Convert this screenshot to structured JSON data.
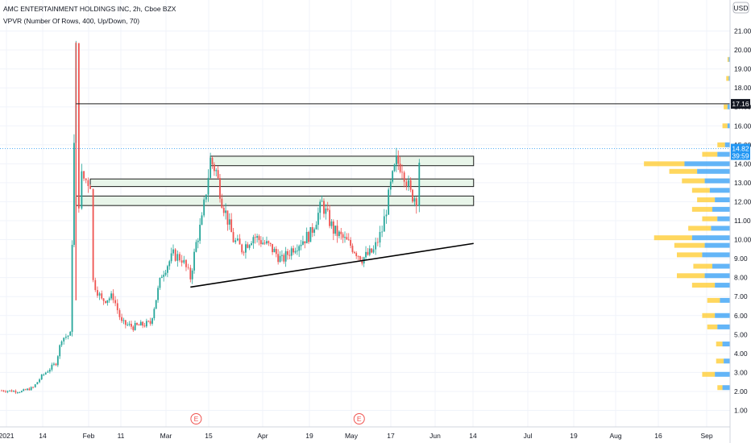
{
  "header": {
    "title": "AMC ENTERTAINMENT HOLDINGS INC, 2h, Cboe BZX",
    "indicator": "VPVR (Number Of Rows, 400, Up/Down, 70)",
    "currency": "USD"
  },
  "price_labels": {
    "resistance": "17.16",
    "last_price": "14.82",
    "countdown": "39:59"
  },
  "earnings_marker": "E",
  "colors": {
    "up": "#26a69a",
    "down": "#ef5350",
    "box_fill": "#e8f5e9",
    "volume_up": "#2196f3",
    "volume_down": "#ffca28",
    "last_price": "#2196f3"
  },
  "chart_data": {
    "type": "candlestick",
    "ylim": [
      0.4,
      22.0
    ],
    "y_ticks": [
      "1.00",
      "2.00",
      "3.00",
      "4.00",
      "5.00",
      "6.00",
      "7.00",
      "8.00",
      "9.00",
      "10.00",
      "11.00",
      "12.00",
      "13.00",
      "14.00",
      "15.00",
      "16.00",
      "17.00",
      "18.00",
      "19.00",
      "20.00",
      "21.00"
    ],
    "x_ticks": [
      "2021",
      "14",
      "Feb",
      "11",
      "Mar",
      "15",
      "Apr",
      "19",
      "May",
      "17",
      "Jun",
      "14",
      "Jul",
      "19",
      "Aug",
      "16",
      "Sep"
    ],
    "price_path": [
      [
        "2021-01-01",
        2.05
      ],
      [
        "2021-01-08",
        2.0
      ],
      [
        "2021-01-12",
        2.2
      ],
      [
        "2021-01-15",
        2.8
      ],
      [
        "2021-01-20",
        3.5
      ],
      [
        "2021-01-22",
        4.8
      ],
      [
        "2021-01-25",
        5.0
      ],
      [
        "2021-01-27",
        19.9
      ],
      [
        "2021-01-28",
        12.0
      ],
      [
        "2021-01-29",
        13.3
      ],
      [
        "2021-02-01",
        13.0
      ],
      [
        "2021-02-02",
        7.8
      ],
      [
        "2021-02-05",
        6.8
      ],
      [
        "2021-02-09",
        7.0
      ],
      [
        "2021-02-12",
        5.6
      ],
      [
        "2021-02-16",
        5.4
      ],
      [
        "2021-02-22",
        5.6
      ],
      [
        "2021-02-26",
        8.2
      ],
      [
        "2021-03-02",
        9.2
      ],
      [
        "2021-03-05",
        9.0
      ],
      [
        "2021-03-08",
        8.0
      ],
      [
        "2021-03-10",
        9.8
      ],
      [
        "2021-03-12",
        11.0
      ],
      [
        "2021-03-15",
        14.2
      ],
      [
        "2021-03-17",
        13.6
      ],
      [
        "2021-03-19",
        12.1
      ],
      [
        "2021-03-23",
        10.0
      ],
      [
        "2021-03-26",
        9.5
      ],
      [
        "2021-03-30",
        10.2
      ],
      [
        "2021-04-05",
        9.6
      ],
      [
        "2021-04-09",
        8.9
      ],
      [
        "2021-04-13",
        9.6
      ],
      [
        "2021-04-19",
        10.3
      ],
      [
        "2021-04-23",
        11.9
      ],
      [
        "2021-04-27",
        10.5
      ],
      [
        "2021-05-03",
        9.7
      ],
      [
        "2021-05-07",
        9.0
      ],
      [
        "2021-05-11",
        9.4
      ],
      [
        "2021-05-14",
        10.5
      ],
      [
        "2021-05-17",
        12.8
      ],
      [
        "2021-05-19",
        14.1
      ],
      [
        "2021-05-21",
        13.9
      ],
      [
        "2021-05-24",
        12.4
      ],
      [
        "2021-05-26",
        12.2
      ],
      [
        "2021-05-27",
        14.2
      ],
      [
        "2021-05-28",
        14.8
      ]
    ],
    "resistance_line": 17.16,
    "support_zones": [
      {
        "start": "2021-03-15",
        "end": "2021-06-15",
        "low": 13.9,
        "high": 14.4
      },
      {
        "start": "2021-02-01",
        "end": "2021-06-15",
        "low": 12.8,
        "high": 13.2
      },
      {
        "start": "2021-01-27",
        "end": "2021-06-15",
        "low": 11.8,
        "high": 12.3
      }
    ],
    "trendline": [
      [
        "2021-03-08",
        7.5
      ],
      [
        "2021-06-15",
        9.8
      ]
    ],
    "earnings_dates": [
      "2021-03-10",
      "2021-05-06"
    ],
    "volume_profile": [
      {
        "price": 2.2,
        "up": 0.06,
        "down": 0.04
      },
      {
        "price": 2.9,
        "up": 0.12,
        "down": 0.1
      },
      {
        "price": 3.6,
        "up": 0.05,
        "down": 0.06
      },
      {
        "price": 4.5,
        "up": 0.06,
        "down": 0.05
      },
      {
        "price": 5.4,
        "up": 0.1,
        "down": 0.08
      },
      {
        "price": 6.0,
        "up": 0.12,
        "down": 0.1
      },
      {
        "price": 6.8,
        "up": 0.08,
        "down": 0.1
      },
      {
        "price": 7.6,
        "up": 0.12,
        "down": 0.18
      },
      {
        "price": 8.1,
        "up": 0.2,
        "down": 0.22
      },
      {
        "price": 8.6,
        "up": 0.14,
        "down": 0.15
      },
      {
        "price": 9.2,
        "up": 0.22,
        "down": 0.2
      },
      {
        "price": 9.7,
        "up": 0.2,
        "down": 0.24
      },
      {
        "price": 10.1,
        "up": 0.3,
        "down": 0.3
      },
      {
        "price": 10.6,
        "up": 0.15,
        "down": 0.18
      },
      {
        "price": 11.1,
        "up": 0.1,
        "down": 0.12
      },
      {
        "price": 11.6,
        "up": 0.14,
        "down": 0.16
      },
      {
        "price": 12.1,
        "up": 0.12,
        "down": 0.14
      },
      {
        "price": 12.6,
        "up": 0.16,
        "down": 0.14
      },
      {
        "price": 13.1,
        "up": 0.2,
        "down": 0.18
      },
      {
        "price": 13.6,
        "up": 0.26,
        "down": 0.22
      },
      {
        "price": 14.0,
        "up": 0.36,
        "down": 0.32
      },
      {
        "price": 14.5,
        "up": 0.1,
        "down": 0.12
      },
      {
        "price": 15.0,
        "up": 0.04,
        "down": 0.06
      },
      {
        "price": 16.0,
        "up": 0.02,
        "down": 0.04
      },
      {
        "price": 17.0,
        "up": 0.02,
        "down": 0.03
      },
      {
        "price": 18.5,
        "up": 0.01,
        "down": 0.02
      },
      {
        "price": 19.5,
        "up": 0.01,
        "down": 0.01
      }
    ]
  }
}
